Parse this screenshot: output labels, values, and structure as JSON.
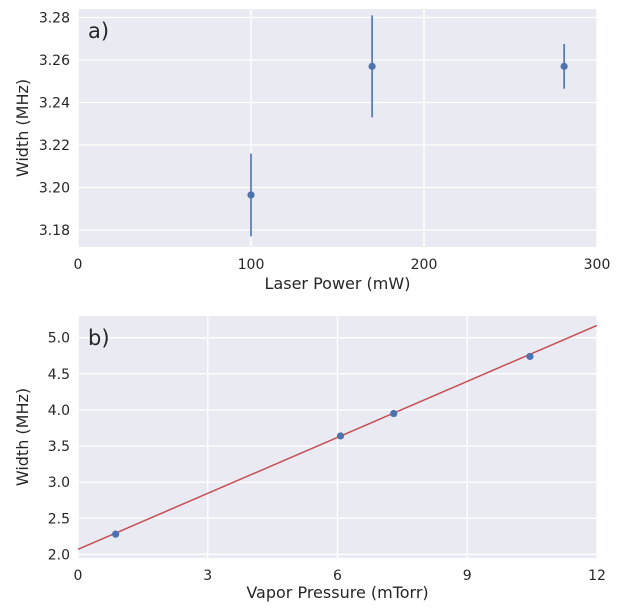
{
  "chart_data": [
    {
      "type": "scatter",
      "panel_label": "a)",
      "xlabel": "Laser Power (mW)",
      "ylabel": "Width (MHz)",
      "xlim": [
        0,
        300
      ],
      "ylim": [
        3.172,
        3.284
      ],
      "xticks": [
        0,
        100,
        200,
        300
      ],
      "yticks": [
        3.18,
        3.2,
        3.22,
        3.24,
        3.26,
        3.28
      ],
      "ytick_labels": [
        "3.18",
        "3.20",
        "3.22",
        "3.24",
        "3.26",
        "3.28"
      ],
      "grid": true,
      "points": [
        {
          "x": 100,
          "y": 3.1965,
          "err_low": 3.177,
          "err_high": 3.216
        },
        {
          "x": 170,
          "y": 3.257,
          "err_low": 3.233,
          "err_high": 3.281
        },
        {
          "x": 281,
          "y": 3.257,
          "err_low": 3.2465,
          "err_high": 3.2675
        }
      ],
      "colors": {
        "point": "#4c72b0",
        "background": "#eaeaf2",
        "grid": "#ffffff"
      }
    },
    {
      "type": "scatter",
      "panel_label": "b)",
      "xlabel": "Vapor Pressure (mTorr)",
      "ylabel": "Width (MHz)",
      "xlim": [
        0,
        12
      ],
      "ylim": [
        1.95,
        5.3
      ],
      "xticks": [
        0,
        3,
        6,
        9,
        12
      ],
      "yticks": [
        2.0,
        2.5,
        3.0,
        3.5,
        4.0,
        4.5,
        5.0
      ],
      "ytick_labels": [
        "2.0",
        "2.5",
        "3.0",
        "3.5",
        "4.0",
        "4.5",
        "5.0"
      ],
      "grid": true,
      "points": [
        {
          "x": 0.87,
          "y": 2.28
        },
        {
          "x": 6.07,
          "y": 3.64
        },
        {
          "x": 7.3,
          "y": 3.95
        },
        {
          "x": 10.45,
          "y": 4.74
        }
      ],
      "fit_line": {
        "x": [
          0,
          12
        ],
        "y": [
          2.07,
          5.17
        ]
      },
      "colors": {
        "point": "#4c72b0",
        "fit": "#c44e52",
        "background": "#eaeaf2",
        "grid": "#ffffff"
      }
    }
  ]
}
